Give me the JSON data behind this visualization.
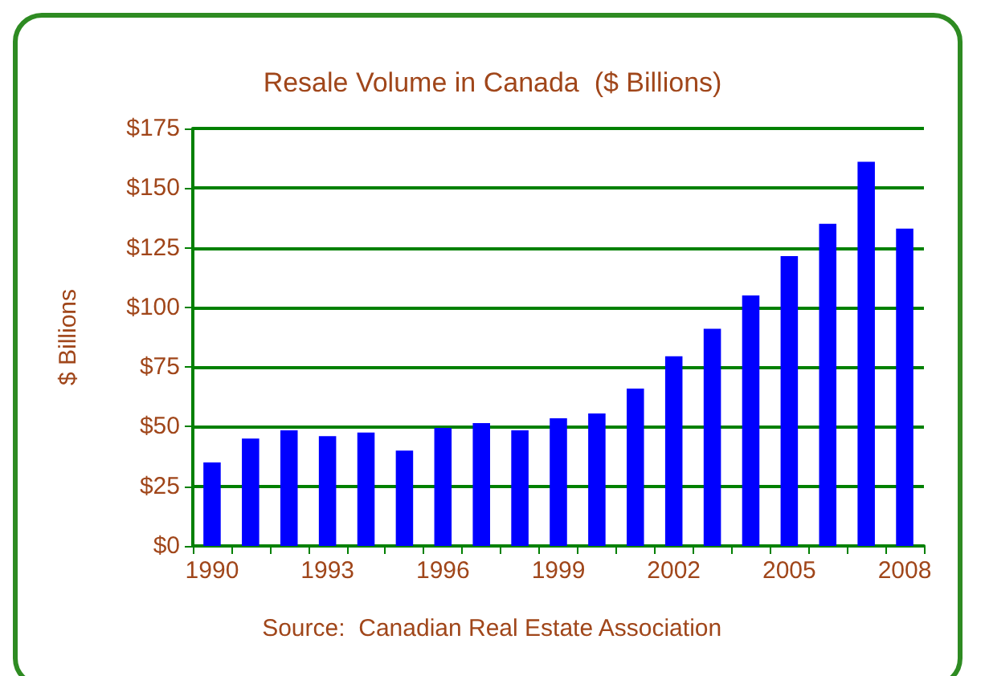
{
  "chart_data": {
    "type": "bar",
    "title": "Resale Volume in Canada  ($ Billions)",
    "ylabel": "$ Billions",
    "annotations": [
      "Source:  Canadian Real Estate Association"
    ],
    "categories": [
      "1990",
      null,
      null,
      "1993",
      null,
      null,
      "1996",
      null,
      null,
      "1999",
      null,
      null,
      "2002",
      null,
      null,
      "2005",
      null,
      null,
      "2008"
    ],
    "values": [
      35,
      45,
      48.5,
      46,
      47.5,
      40,
      49.5,
      51.5,
      48.5,
      53.5,
      55.5,
      66,
      79.5,
      91,
      105,
      121.5,
      135,
      161,
      133
    ],
    "color": "#0000ff",
    "ylim": [
      0,
      175
    ],
    "yticks": [
      {
        "value": 0,
        "label": "$0"
      },
      {
        "value": 25,
        "label": "$25"
      },
      {
        "value": 50,
        "label": "$50"
      },
      {
        "value": 75,
        "label": "$75"
      },
      {
        "value": 100,
        "label": "$100"
      },
      {
        "value": 125,
        "label": "$125"
      },
      {
        "value": 150,
        "label": "$150"
      },
      {
        "value": 175,
        "label": "$175"
      }
    ],
    "grid": "y"
  }
}
